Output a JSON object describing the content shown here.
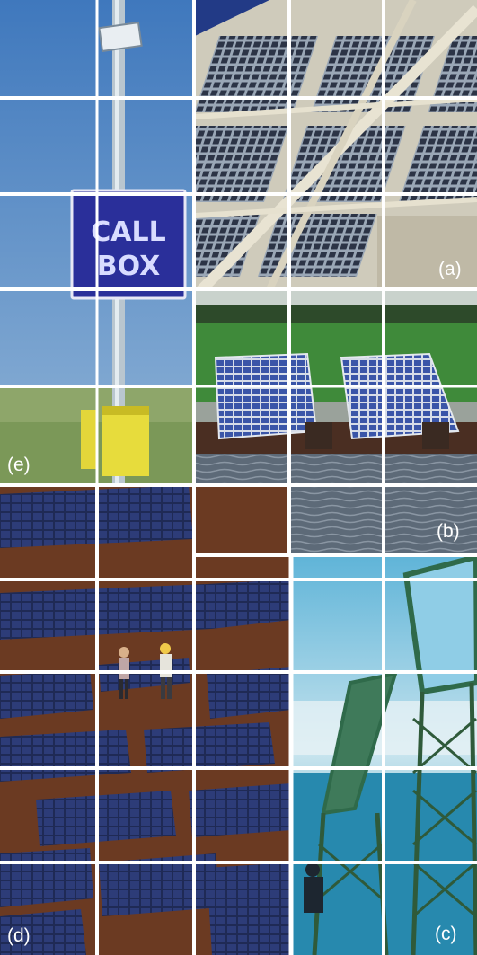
{
  "panels": {
    "a": {
      "label": "(a)"
    },
    "b": {
      "label": "(b)"
    },
    "c": {
      "label": "(c)"
    },
    "d": {
      "label": "(d)"
    },
    "e": {
      "label": "(e)",
      "sign_line1": "CALL",
      "sign_line2": "BOX"
    }
  },
  "colors": {
    "sky_blue": "#5b8fc4",
    "sign_blue": "#2a2f9a",
    "grass_green": "#3f8a3a",
    "solar_navy": "#1f2a55",
    "soil_brown": "#6b3a22",
    "water_gray": "#5d6a78",
    "frame_cream": "#ddd8c8",
    "cyan_sky": "#7fc6e0",
    "tower_green": "#2f6a4a"
  }
}
